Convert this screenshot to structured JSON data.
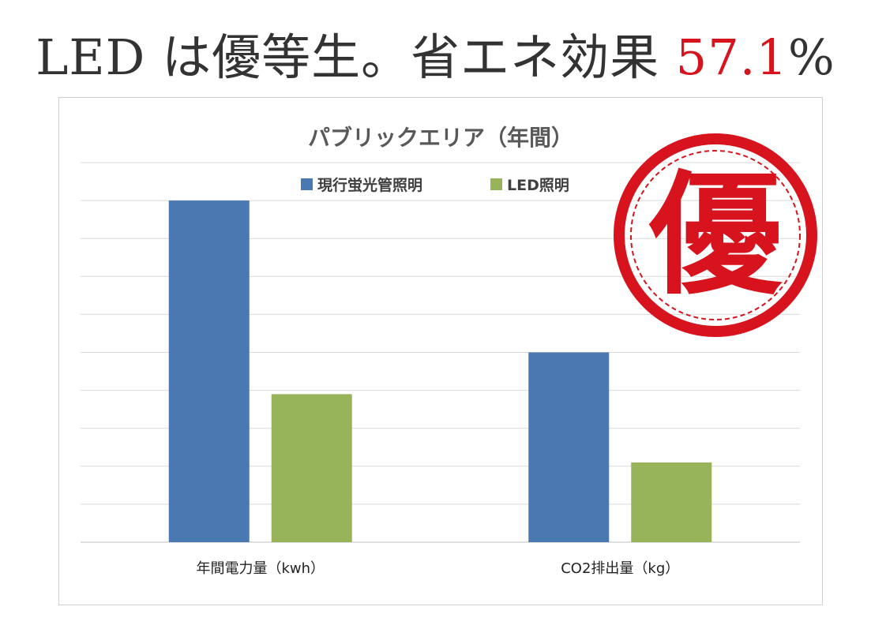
{
  "headline": {
    "prefix": "LED は優等生。省エネ効果 ",
    "highlight": "57.1",
    "suffix": "%"
  },
  "stamp": {
    "text": "優",
    "color": "#d7141e"
  },
  "colors": {
    "headline_text": "#333333",
    "headline_accent": "#d7141e"
  },
  "chart_data": {
    "type": "bar",
    "title": "パブリックエリア（年間）",
    "categories": [
      "年間電力量（kwh）",
      "CO2排出量（kg）"
    ],
    "series": [
      {
        "name": "現行蛍光管照明",
        "color": "#4a78b0",
        "values": [
          9.0,
          5.0
        ]
      },
      {
        "name": "LED照明",
        "color": "#98b45b",
        "values": [
          3.9,
          2.1
        ]
      }
    ],
    "ylim": [
      0,
      10
    ],
    "grid": true,
    "legend_position": "top"
  }
}
